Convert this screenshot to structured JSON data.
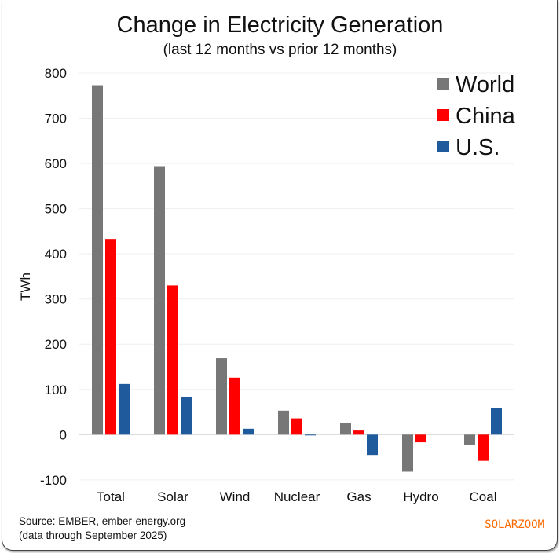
{
  "chart_data": {
    "type": "bar",
    "title": "Change in Electricity Generation",
    "subtitle": "(last 12 months vs prior 12 months)",
    "ylabel": "TWh",
    "xlabel": "",
    "ylim": [
      -100,
      800
    ],
    "yticks": [
      -100,
      0,
      100,
      200,
      300,
      400,
      500,
      600,
      700,
      800
    ],
    "grid": true,
    "legend_position": "top-right",
    "categories": [
      "Total",
      "Solar",
      "Wind",
      "Nuclear",
      "Gas",
      "Hydro",
      "Coal"
    ],
    "series": [
      {
        "name": "World",
        "color": "#777777",
        "values": [
          773,
          594,
          169,
          53,
          25,
          -82,
          -22
        ]
      },
      {
        "name": "China",
        "color": "#ff0000",
        "values": [
          433,
          330,
          126,
          36,
          9,
          -17,
          -58
        ]
      },
      {
        "name": "U.S.",
        "color": "#1f5b9c",
        "values": [
          112,
          84,
          13,
          -1,
          -45,
          0,
          59
        ]
      }
    ]
  },
  "footer": {
    "source": "Source: EMBER, ember-energy.org",
    "note": "(data through September 2025)",
    "watermark": "SOLARZOOM"
  }
}
